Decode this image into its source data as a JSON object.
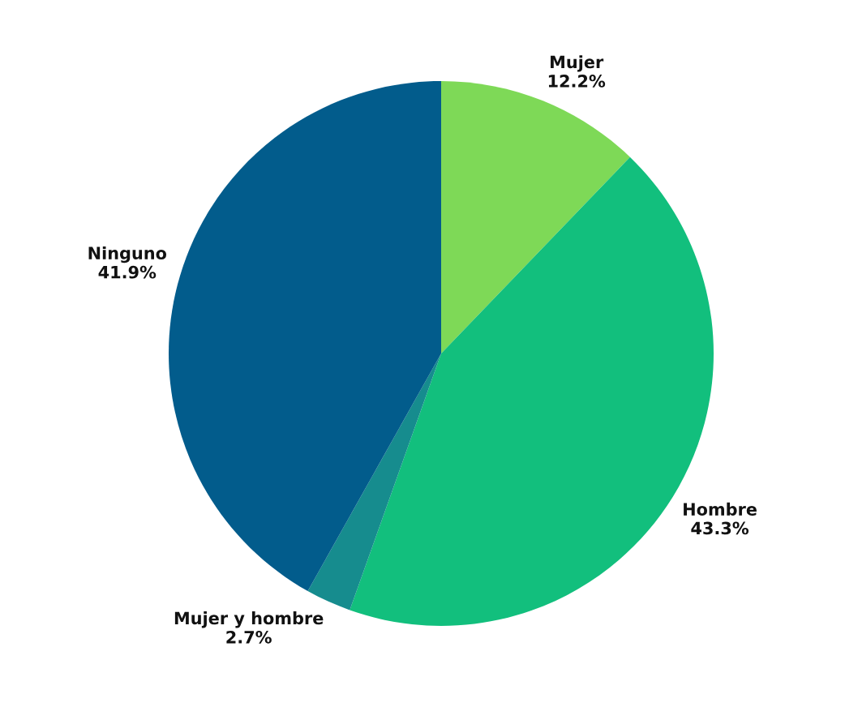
{
  "chart_data": {
    "type": "pie",
    "categories": [
      "Mujer",
      "Hombre",
      "Mujer y hombre",
      "Ninguno"
    ],
    "values": [
      12.2,
      43.3,
      2.7,
      41.9
    ],
    "value_labels": [
      "12.2%",
      "43.3%",
      "2.7%",
      "41.9%"
    ],
    "colors": [
      "#7ed957",
      "#12bf7d",
      "#168c8e",
      "#025c8c"
    ]
  }
}
